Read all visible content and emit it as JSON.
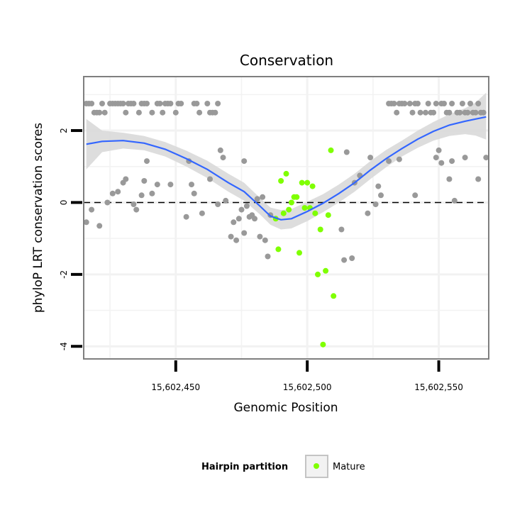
{
  "chart_data": {
    "type": "scatter",
    "title": "Conservation",
    "xlabel": "Genomic Position",
    "ylabel": "phyloP LRT conservation scores",
    "xlim": [
      15602415,
      15602569
    ],
    "ylim": [
      -4.35,
      3.5
    ],
    "x_ticks": [
      {
        "value": 15602450,
        "label": "15,602,450"
      },
      {
        "value": 15602500,
        "label": "15,602,500"
      },
      {
        "value": 15602550,
        "label": "15,602,550"
      }
    ],
    "y_ticks": [
      {
        "value": -4,
        "label": "-4"
      },
      {
        "value": -2,
        "label": "-2"
      },
      {
        "value": 0,
        "label": "0"
      },
      {
        "value": 2,
        "label": "2"
      }
    ],
    "reference_line": {
      "y": 0,
      "style": "dashed"
    },
    "colors": {
      "other": "#999999",
      "mature": "#7fff00",
      "smooth": "#3366ff",
      "ribbon": "#d9d9d9",
      "panel_border": "#7f7f7f",
      "grid": "#f2f2f2"
    },
    "series": [
      {
        "name": "Other",
        "in_legend": false,
        "points": [
          [
            15602416,
            2.75
          ],
          [
            15602417,
            2.75
          ],
          [
            15602418,
            2.75
          ],
          [
            15602419,
            2.5
          ],
          [
            15602420,
            2.5
          ],
          [
            15602421,
            2.5
          ],
          [
            15602422,
            2.75
          ],
          [
            15602423,
            2.5
          ],
          [
            15602425,
            2.75
          ],
          [
            15602426,
            2.75
          ],
          [
            15602427,
            2.75
          ],
          [
            15602428,
            2.75
          ],
          [
            15602429,
            2.75
          ],
          [
            15602430,
            2.75
          ],
          [
            15602431,
            2.5
          ],
          [
            15602432,
            2.75
          ],
          [
            15602433,
            2.75
          ],
          [
            15602434,
            2.75
          ],
          [
            15602436,
            2.5
          ],
          [
            15602437,
            2.75
          ],
          [
            15602438,
            2.75
          ],
          [
            15602439,
            2.75
          ],
          [
            15602441,
            2.5
          ],
          [
            15602443,
            2.75
          ],
          [
            15602444,
            2.75
          ],
          [
            15602445,
            2.5
          ],
          [
            15602446,
            2.75
          ],
          [
            15602447,
            2.75
          ],
          [
            15602448,
            2.75
          ],
          [
            15602450,
            2.5
          ],
          [
            15602451,
            2.75
          ],
          [
            15602452,
            2.75
          ],
          [
            15602457,
            2.75
          ],
          [
            15602458,
            2.75
          ],
          [
            15602459,
            2.5
          ],
          [
            15602462,
            2.75
          ],
          [
            15602463,
            2.5
          ],
          [
            15602464,
            2.5
          ],
          [
            15602465,
            2.5
          ],
          [
            15602466,
            2.75
          ],
          [
            15602531,
            2.75
          ],
          [
            15602532,
            2.75
          ],
          [
            15602533,
            2.75
          ],
          [
            15602534,
            2.5
          ],
          [
            15602535,
            2.75
          ],
          [
            15602536,
            2.75
          ],
          [
            15602537,
            2.75
          ],
          [
            15602539,
            2.75
          ],
          [
            15602540,
            2.5
          ],
          [
            15602541,
            2.75
          ],
          [
            15602542,
            2.75
          ],
          [
            15602543,
            2.5
          ],
          [
            15602545,
            2.5
          ],
          [
            15602546,
            2.75
          ],
          [
            15602547,
            2.5
          ],
          [
            15602548,
            2.5
          ],
          [
            15602549,
            2.75
          ],
          [
            15602551,
            2.75
          ],
          [
            15602552,
            2.75
          ],
          [
            15602553,
            2.5
          ],
          [
            15602554,
            2.5
          ],
          [
            15602555,
            2.75
          ],
          [
            15602557,
            2.5
          ],
          [
            15602558,
            2.5
          ],
          [
            15602559,
            2.75
          ],
          [
            15602560,
            2.5
          ],
          [
            15602561,
            2.5
          ],
          [
            15602562,
            2.75
          ],
          [
            15602563,
            2.5
          ],
          [
            15602564,
            2.5
          ],
          [
            15602565,
            2.75
          ],
          [
            15602566,
            2.5
          ],
          [
            15602567,
            2.5
          ],
          [
            15602416,
            -0.55
          ],
          [
            15602418,
            -0.2
          ],
          [
            15602421,
            -0.65
          ],
          [
            15602424,
            0.0
          ],
          [
            15602426,
            0.25
          ],
          [
            15602428,
            0.3
          ],
          [
            15602430,
            0.55
          ],
          [
            15602431,
            0.65
          ],
          [
            15602434,
            -0.05
          ],
          [
            15602435,
            -0.2
          ],
          [
            15602437,
            0.2
          ],
          [
            15602438,
            0.6
          ],
          [
            15602439,
            1.15
          ],
          [
            15602441,
            0.25
          ],
          [
            15602443,
            0.5
          ],
          [
            15602448,
            0.5
          ],
          [
            15602454,
            -0.4
          ],
          [
            15602455,
            1.15
          ],
          [
            15602456,
            0.5
          ],
          [
            15602457,
            0.25
          ],
          [
            15602460,
            -0.3
          ],
          [
            15602463,
            0.65
          ],
          [
            15602466,
            -0.05
          ],
          [
            15602467,
            1.45
          ],
          [
            15602468,
            1.25
          ],
          [
            15602469,
            0.05
          ],
          [
            15602471,
            -0.95
          ],
          [
            15602472,
            -0.55
          ],
          [
            15602473,
            -1.05
          ],
          [
            15602474,
            -0.45
          ],
          [
            15602475,
            -0.2
          ],
          [
            15602476,
            -0.85
          ],
          [
            15602476,
            1.15
          ],
          [
            15602477,
            -0.1
          ],
          [
            15602478,
            -0.4
          ],
          [
            15602479,
            -0.35
          ],
          [
            15602480,
            -0.45
          ],
          [
            15602481,
            0.1
          ],
          [
            15602482,
            -0.95
          ],
          [
            15602483,
            0.15
          ],
          [
            15602484,
            -1.05
          ],
          [
            15602485,
            -1.5
          ],
          [
            15602486,
            -0.35
          ],
          [
            15602513,
            -0.75
          ],
          [
            15602514,
            -1.6
          ],
          [
            15602515,
            1.4
          ],
          [
            15602517,
            -1.55
          ],
          [
            15602518,
            0.55
          ],
          [
            15602520,
            0.75
          ],
          [
            15602523,
            -0.3
          ],
          [
            15602524,
            1.25
          ],
          [
            15602526,
            -0.05
          ],
          [
            15602527,
            0.45
          ],
          [
            15602528,
            0.2
          ],
          [
            15602531,
            1.15
          ],
          [
            15602535,
            1.2
          ],
          [
            15602541,
            0.2
          ],
          [
            15602549,
            1.25
          ],
          [
            15602550,
            1.45
          ],
          [
            15602551,
            1.1
          ],
          [
            15602554,
            0.65
          ],
          [
            15602555,
            1.15
          ],
          [
            15602556,
            0.05
          ],
          [
            15602560,
            1.25
          ],
          [
            15602565,
            0.65
          ],
          [
            15602568,
            1.25
          ]
        ]
      },
      {
        "name": "Mature",
        "in_legend": true,
        "points": [
          [
            15602488,
            -0.45
          ],
          [
            15602489,
            -1.3
          ],
          [
            15602490,
            0.6
          ],
          [
            15602491,
            -0.3
          ],
          [
            15602492,
            0.8
          ],
          [
            15602493,
            -0.2
          ],
          [
            15602494,
            0.0
          ],
          [
            15602495,
            0.15
          ],
          [
            15602496,
            0.15
          ],
          [
            15602497,
            -1.4
          ],
          [
            15602498,
            0.55
          ],
          [
            15602499,
            -0.15
          ],
          [
            15602500,
            0.55
          ],
          [
            15602501,
            -0.15
          ],
          [
            15602502,
            0.45
          ],
          [
            15602503,
            -0.3
          ],
          [
            15602504,
            -2.0
          ],
          [
            15602505,
            -0.75
          ],
          [
            15602506,
            -3.95
          ],
          [
            15602507,
            -1.9
          ],
          [
            15602508,
            -0.35
          ],
          [
            15602509,
            1.45
          ],
          [
            15602510,
            -2.6
          ]
        ]
      }
    ],
    "smooth_line": {
      "method": "loess",
      "x": [
        15602416,
        15602422,
        15602430,
        15602438,
        15602446,
        15602454,
        15602462,
        15602470,
        15602476,
        15602482,
        15602486,
        15602490,
        15602494,
        15602500,
        15602506,
        15602512,
        15602518,
        15602524,
        15602530,
        15602536,
        15602542,
        15602548,
        15602554,
        15602560,
        15602564,
        15602568
      ],
      "y": [
        1.62,
        1.7,
        1.72,
        1.65,
        1.48,
        1.22,
        0.92,
        0.55,
        0.3,
        -0.1,
        -0.38,
        -0.48,
        -0.45,
        -0.25,
        -0.02,
        0.25,
        0.55,
        0.9,
        1.22,
        1.5,
        1.76,
        1.98,
        2.15,
        2.26,
        2.32,
        2.38
      ],
      "ci_low": [
        0.92,
        1.4,
        1.5,
        1.45,
        1.28,
        1.0,
        0.68,
        0.3,
        0.05,
        -0.33,
        -0.62,
        -0.75,
        -0.72,
        -0.52,
        -0.27,
        0.0,
        0.3,
        0.65,
        0.98,
        1.28,
        1.52,
        1.72,
        1.85,
        1.9,
        1.86,
        1.75
      ],
      "ci_high": [
        2.32,
        2.0,
        1.94,
        1.85,
        1.68,
        1.44,
        1.16,
        0.8,
        0.55,
        0.13,
        -0.14,
        -0.21,
        -0.18,
        0.02,
        0.23,
        0.5,
        0.8,
        1.15,
        1.46,
        1.72,
        2.0,
        2.24,
        2.45,
        2.62,
        2.78,
        3.05
      ]
    },
    "legend": {
      "title": "Hairpin partition",
      "entries": [
        "Mature"
      ],
      "placement": "bottom"
    }
  }
}
